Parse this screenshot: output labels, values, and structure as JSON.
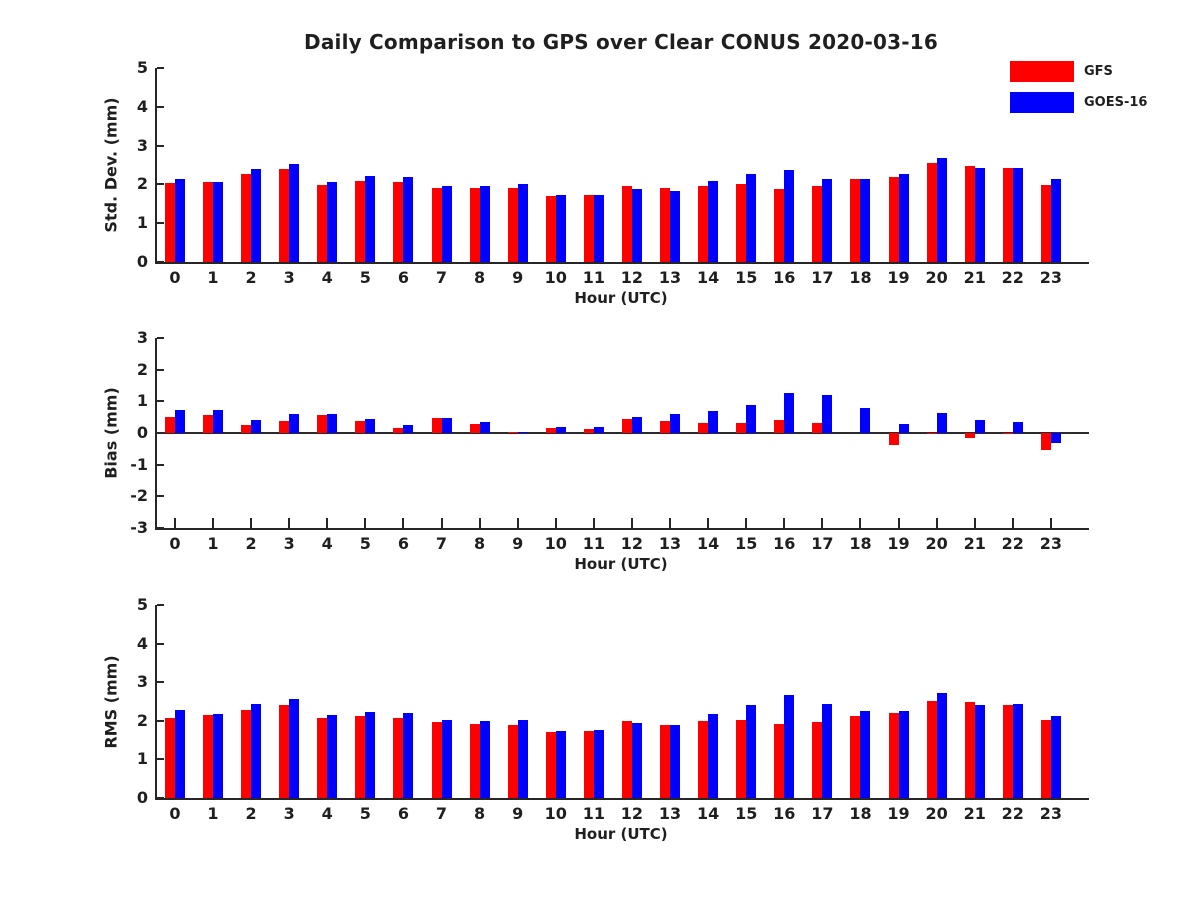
{
  "title": "Daily Comparison to GPS over Clear CONUS 2020-03-16",
  "colors": {
    "gfs": "#ff0000",
    "goes16": "#0000ff",
    "axis": "#262626"
  },
  "legend": [
    {
      "label": "GFS",
      "color": "#ff0000"
    },
    {
      "label": "GOES-16",
      "color": "#0000ff"
    }
  ],
  "chart_data": [
    {
      "type": "bar",
      "ylabel": "Std. Dev. (mm)",
      "xlabel": "Hour (UTC)",
      "ylim": [
        0,
        5
      ],
      "yticks": [
        0,
        1,
        2,
        3,
        4,
        5
      ],
      "grid": false,
      "legend_position": "top-right-outside",
      "categories": [
        0,
        1,
        2,
        3,
        4,
        5,
        6,
        7,
        8,
        9,
        10,
        11,
        12,
        13,
        14,
        15,
        16,
        17,
        18,
        19,
        20,
        21,
        22,
        23
      ],
      "series": [
        {
          "name": "GFS",
          "color": "#ff0000",
          "values": [
            2.03,
            2.05,
            2.27,
            2.4,
            1.98,
            2.08,
            2.05,
            1.9,
            1.9,
            1.9,
            1.7,
            1.73,
            1.95,
            1.9,
            1.97,
            2.02,
            1.88,
            1.97,
            2.13,
            2.2,
            2.55,
            2.48,
            2.42,
            1.98
          ]
        },
        {
          "name": "GOES-16",
          "color": "#0000ff",
          "values": [
            2.15,
            2.05,
            2.4,
            2.52,
            2.05,
            2.22,
            2.18,
            1.95,
            1.97,
            2.0,
            1.73,
            1.73,
            1.87,
            1.82,
            2.08,
            2.27,
            2.37,
            2.15,
            2.15,
            2.28,
            2.67,
            2.42,
            2.42,
            2.13
          ]
        }
      ]
    },
    {
      "type": "bar",
      "ylabel": "Bias (mm)",
      "xlabel": "Hour (UTC)",
      "ylim": [
        -3,
        3
      ],
      "yticks": [
        -3,
        -2,
        -1,
        0,
        1,
        2,
        3
      ],
      "grid": false,
      "zero_line": true,
      "categories": [
        0,
        1,
        2,
        3,
        4,
        5,
        6,
        7,
        8,
        9,
        10,
        11,
        12,
        13,
        14,
        15,
        16,
        17,
        18,
        19,
        20,
        21,
        22,
        23
      ],
      "series": [
        {
          "name": "GFS",
          "color": "#ff0000",
          "values": [
            0.5,
            0.57,
            0.25,
            0.37,
            0.58,
            0.37,
            0.17,
            0.48,
            0.3,
            0.02,
            0.15,
            0.13,
            0.43,
            0.38,
            0.33,
            0.32,
            0.42,
            0.32,
            0.0,
            -0.37,
            -0.03,
            -0.15,
            -0.03,
            -0.53
          ]
        },
        {
          "name": "GOES-16",
          "color": "#0000ff",
          "values": [
            0.72,
            0.72,
            0.42,
            0.6,
            0.6,
            0.45,
            0.25,
            0.48,
            0.36,
            0.02,
            0.2,
            0.2,
            0.52,
            0.6,
            0.7,
            0.9,
            1.25,
            1.2,
            0.78,
            0.28,
            0.63,
            0.4,
            0.35,
            -0.3
          ]
        }
      ]
    },
    {
      "type": "bar",
      "ylabel": "RMS (mm)",
      "xlabel": "Hour (UTC)",
      "ylim": [
        0,
        5
      ],
      "yticks": [
        0,
        1,
        2,
        3,
        4,
        5
      ],
      "grid": false,
      "categories": [
        0,
        1,
        2,
        3,
        4,
        5,
        6,
        7,
        8,
        9,
        10,
        11,
        12,
        13,
        14,
        15,
        16,
        17,
        18,
        19,
        20,
        21,
        22,
        23
      ],
      "series": [
        {
          "name": "GFS",
          "color": "#ff0000",
          "values": [
            2.08,
            2.15,
            2.28,
            2.4,
            2.08,
            2.12,
            2.08,
            1.97,
            1.92,
            1.9,
            1.71,
            1.74,
            2.0,
            1.9,
            2.0,
            2.01,
            1.91,
            1.98,
            2.12,
            2.2,
            2.52,
            2.48,
            2.4,
            2.02
          ]
        },
        {
          "name": "GOES-16",
          "color": "#0000ff",
          "values": [
            2.27,
            2.17,
            2.43,
            2.57,
            2.15,
            2.24,
            2.19,
            2.02,
            2.0,
            2.02,
            1.74,
            1.76,
            1.94,
            1.9,
            2.17,
            2.4,
            2.67,
            2.44,
            2.26,
            2.26,
            2.72,
            2.42,
            2.43,
            2.13
          ]
        }
      ]
    }
  ]
}
